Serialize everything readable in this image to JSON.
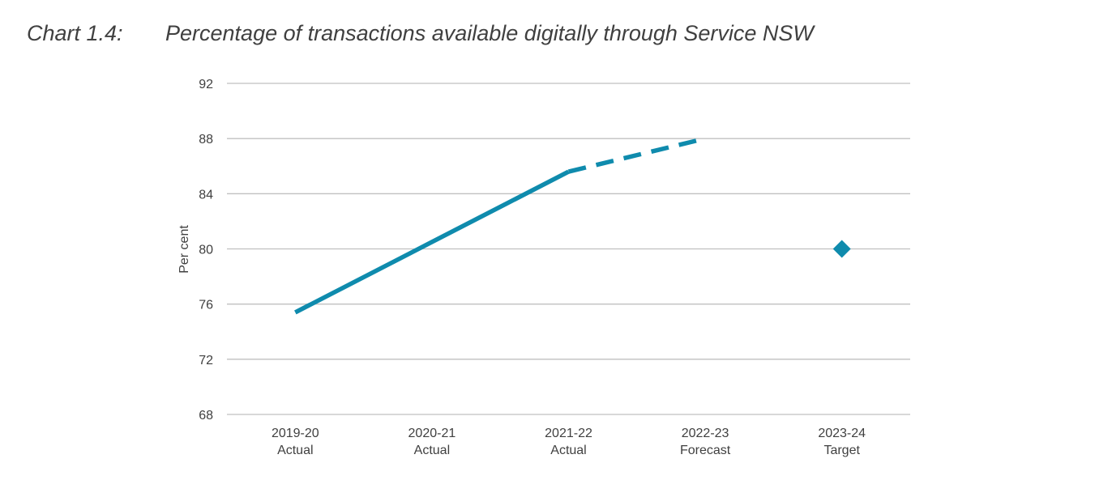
{
  "heading": {
    "label": "Chart 1.4:",
    "title": "Percentage of transactions available digitally through Service NSW"
  },
  "chart_data": {
    "type": "line",
    "title": "Percentage of transactions available digitally through Service NSW",
    "ylabel": "Per cent",
    "xlabel": "",
    "ylim": [
      68,
      92
    ],
    "yticks": [
      68,
      72,
      76,
      80,
      84,
      88,
      92
    ],
    "grid": true,
    "categories": [
      [
        "2019-20",
        "Actual"
      ],
      [
        "2020-21",
        "Actual"
      ],
      [
        "2021-22",
        "Actual"
      ],
      [
        "2022-23",
        "Forecast"
      ],
      [
        "2023-24",
        "Target"
      ]
    ],
    "series": [
      {
        "style": "solid",
        "points": [
          {
            "x": "2019-20",
            "y": 75.4
          },
          {
            "x": "2020-21",
            "y": 80.5
          },
          {
            "x": "2021-22",
            "y": 85.6
          }
        ]
      },
      {
        "style": "dashed",
        "points": [
          {
            "x": "2021-22",
            "y": 85.6
          },
          {
            "x": "2022-23",
            "y": 88.0
          }
        ]
      },
      {
        "style": "marker-diamond",
        "points": [
          {
            "x": "2023-24",
            "y": 80.0
          }
        ]
      }
    ],
    "colors": {
      "line": "#0f8bad",
      "grid": "#c0c0c0",
      "text": "#404040"
    }
  }
}
